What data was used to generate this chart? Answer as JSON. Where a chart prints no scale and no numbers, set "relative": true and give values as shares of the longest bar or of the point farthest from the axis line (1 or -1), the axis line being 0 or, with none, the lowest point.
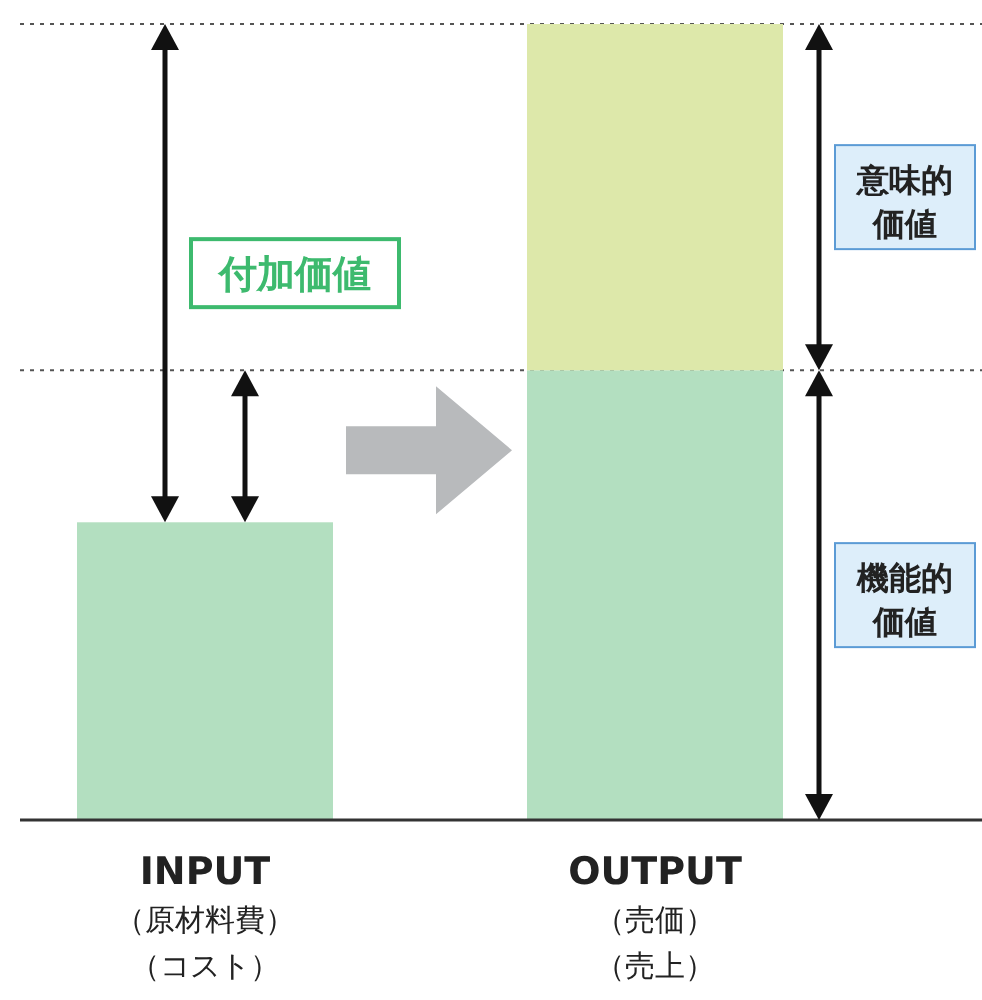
{
  "chart_data": {
    "type": "bar",
    "stacked": true,
    "relative": true,
    "legend": false,
    "categories": [
      "INPUT\n（原材料費）（コスト）",
      "OUTPUT\n（売価）（売上）"
    ],
    "series": [
      {
        "name": "機能的価値",
        "color": "#b3dfc0",
        "values": [
          0.374,
          0.565
        ]
      },
      {
        "name": "意味的価値",
        "color": "#dde8aa",
        "values": [
          null,
          0.435
        ]
      }
    ],
    "annotations": [
      "付加価値"
    ],
    "ref_lines": [
      {
        "axis": "y",
        "value": 1,
        "line_style": "dotted",
        "color": "#555555"
      },
      {
        "axis": "y",
        "value": 0.565,
        "line_style": "dotted",
        "color": "#555555"
      }
    ]
  }
}
